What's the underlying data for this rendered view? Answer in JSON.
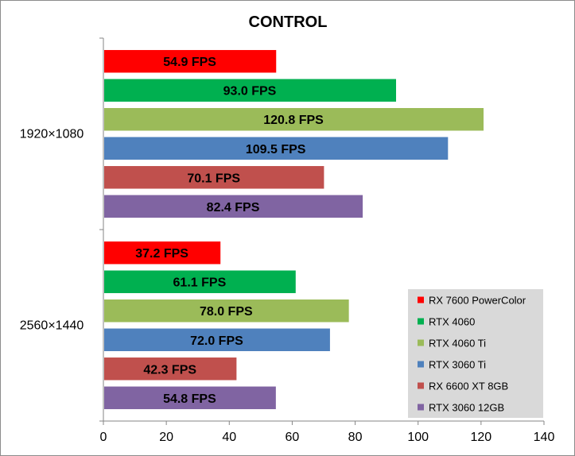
{
  "chart_data": {
    "type": "bar",
    "orientation": "horizontal",
    "title": "CONTROL",
    "xlabel": "",
    "ylabel": "",
    "xlim": [
      0,
      140
    ],
    "ticks": [
      0,
      20,
      40,
      60,
      80,
      100,
      120,
      140
    ],
    "grid": false,
    "legend_position": "bottom-right",
    "unit_suffix": " FPS",
    "categories": [
      "1920×1080",
      "2560×1440"
    ],
    "series": [
      {
        "name": "RX 7600 PowerColor",
        "color": "#ff0000",
        "values": [
          54.9,
          37.2
        ]
      },
      {
        "name": "RTX 4060",
        "color": "#00b050",
        "values": [
          93.0,
          61.1
        ]
      },
      {
        "name": "RTX 4060 Ti",
        "color": "#9bbb59",
        "values": [
          120.8,
          78.0
        ]
      },
      {
        "name": "RTX 3060 Ti",
        "color": "#4f81bd",
        "values": [
          109.5,
          72.0
        ]
      },
      {
        "name": "RX 6600 XT 8GB",
        "color": "#c0504d",
        "values": [
          70.1,
          42.3
        ]
      },
      {
        "name": "RTX 3060 12GB",
        "color": "#8064a2",
        "values": [
          82.4,
          54.8
        ]
      }
    ]
  }
}
